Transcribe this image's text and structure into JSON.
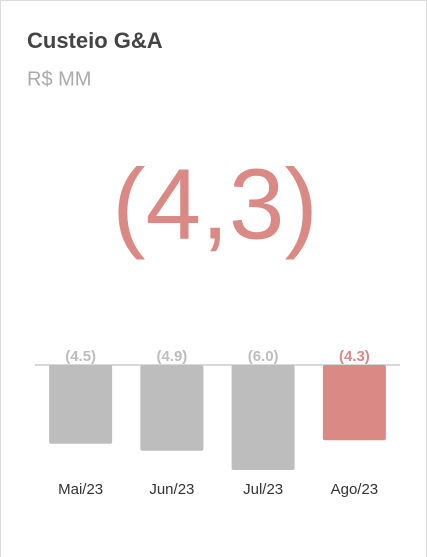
{
  "chart_data": {
    "type": "bar",
    "title": "Custeio G&A",
    "subtitle": "R$ MM",
    "kpi": "(4,3)",
    "categories": [
      "Mai/23",
      "Jun/23",
      "Jul/23",
      "Ago/23"
    ],
    "values": [
      -4.5,
      -4.9,
      -6.0,
      -4.3
    ],
    "value_labels": [
      "(4.5)",
      "(4.9)",
      "(6.0)",
      "(4.3)"
    ],
    "colors": [
      "#bdbdbd",
      "#bdbdbd",
      "#bdbdbd",
      "#db8985"
    ],
    "ylim": [
      -6,
      0
    ]
  }
}
